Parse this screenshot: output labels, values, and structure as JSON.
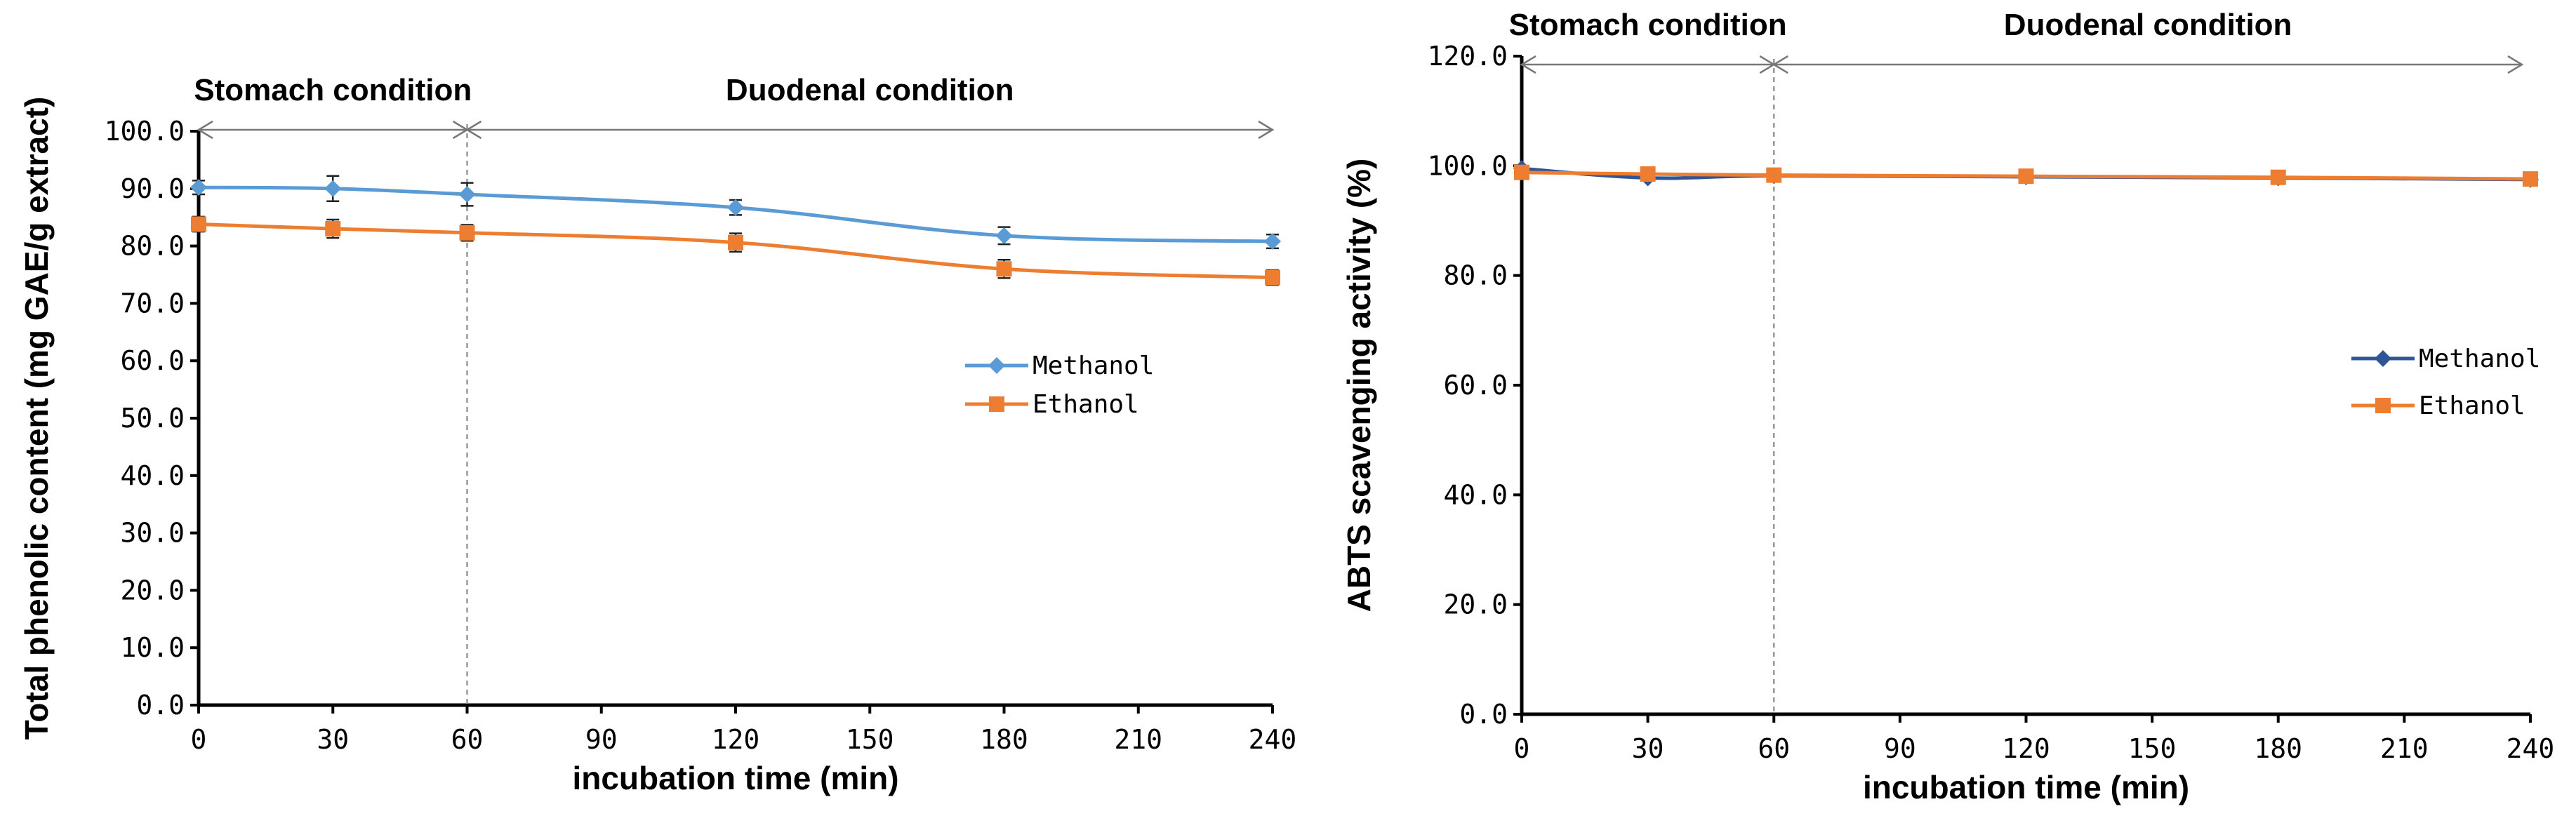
{
  "chart_data": [
    {
      "type": "line",
      "x": [
        0,
        30,
        60,
        120,
        180,
        240
      ],
      "xticks": [
        "0",
        "30",
        "60",
        "90",
        "120",
        "150",
        "180",
        "210",
        "240"
      ],
      "xlim": [
        0,
        240
      ],
      "yticks": [
        "0.0",
        "10.0",
        "20.0",
        "30.0",
        "40.0",
        "50.0",
        "60.0",
        "70.0",
        "80.0",
        "90.0",
        "100.0"
      ],
      "ylim": [
        0,
        100
      ],
      "xlabel": "incubation time (min)",
      "ylabel": "Total phenolic content  (mg GAE/g  extract)",
      "regions": {
        "stomach": "Stomach  condition",
        "duodenal": "Duodenal condition",
        "boundary": 60
      },
      "legend": "right-middle",
      "series": [
        {
          "name": "Methanol",
          "values": [
            90.2,
            90.0,
            89.0,
            86.7,
            81.8,
            80.8
          ],
          "errors": [
            1.2,
            2.2,
            2.0,
            1.3,
            1.5,
            1.2
          ],
          "color": "#5b9bd5",
          "marker": "diamond"
        },
        {
          "name": "Ethanol",
          "values": [
            83.8,
            83.0,
            82.3,
            80.6,
            76.0,
            74.5
          ],
          "errors": [
            1.3,
            1.6,
            1.4,
            1.6,
            1.6,
            1.3
          ],
          "color": "#ed7d31",
          "marker": "square"
        }
      ]
    },
    {
      "type": "line",
      "x": [
        0,
        30,
        60,
        120,
        180,
        240
      ],
      "xticks": [
        "0",
        "30",
        "60",
        "90",
        "120",
        "150",
        "180",
        "210",
        "240"
      ],
      "xlim": [
        0,
        240
      ],
      "yticks": [
        "0.0",
        "20.0",
        "40.0",
        "60.0",
        "80.0",
        "100.0",
        "120.0"
      ],
      "ylim": [
        0,
        120
      ],
      "xlabel": "incubation time (min)",
      "ylabel": "ABTS scavenging activity (%)",
      "regions": {
        "stomach": "Stomach condition",
        "duodenal": "Duodenal condition",
        "boundary": 60
      },
      "legend": "right-middle",
      "series": [
        {
          "name": "Methanol",
          "values": [
            99.5,
            97.8,
            98.2,
            98.0,
            97.8,
            97.5
          ],
          "errors": [],
          "color": "#2f5597",
          "marker": "diamond"
        },
        {
          "name": "Ethanol",
          "values": [
            98.8,
            98.5,
            98.3,
            98.1,
            97.9,
            97.6
          ],
          "errors": [],
          "color": "#ed7d31",
          "marker": "square"
        }
      ]
    }
  ]
}
